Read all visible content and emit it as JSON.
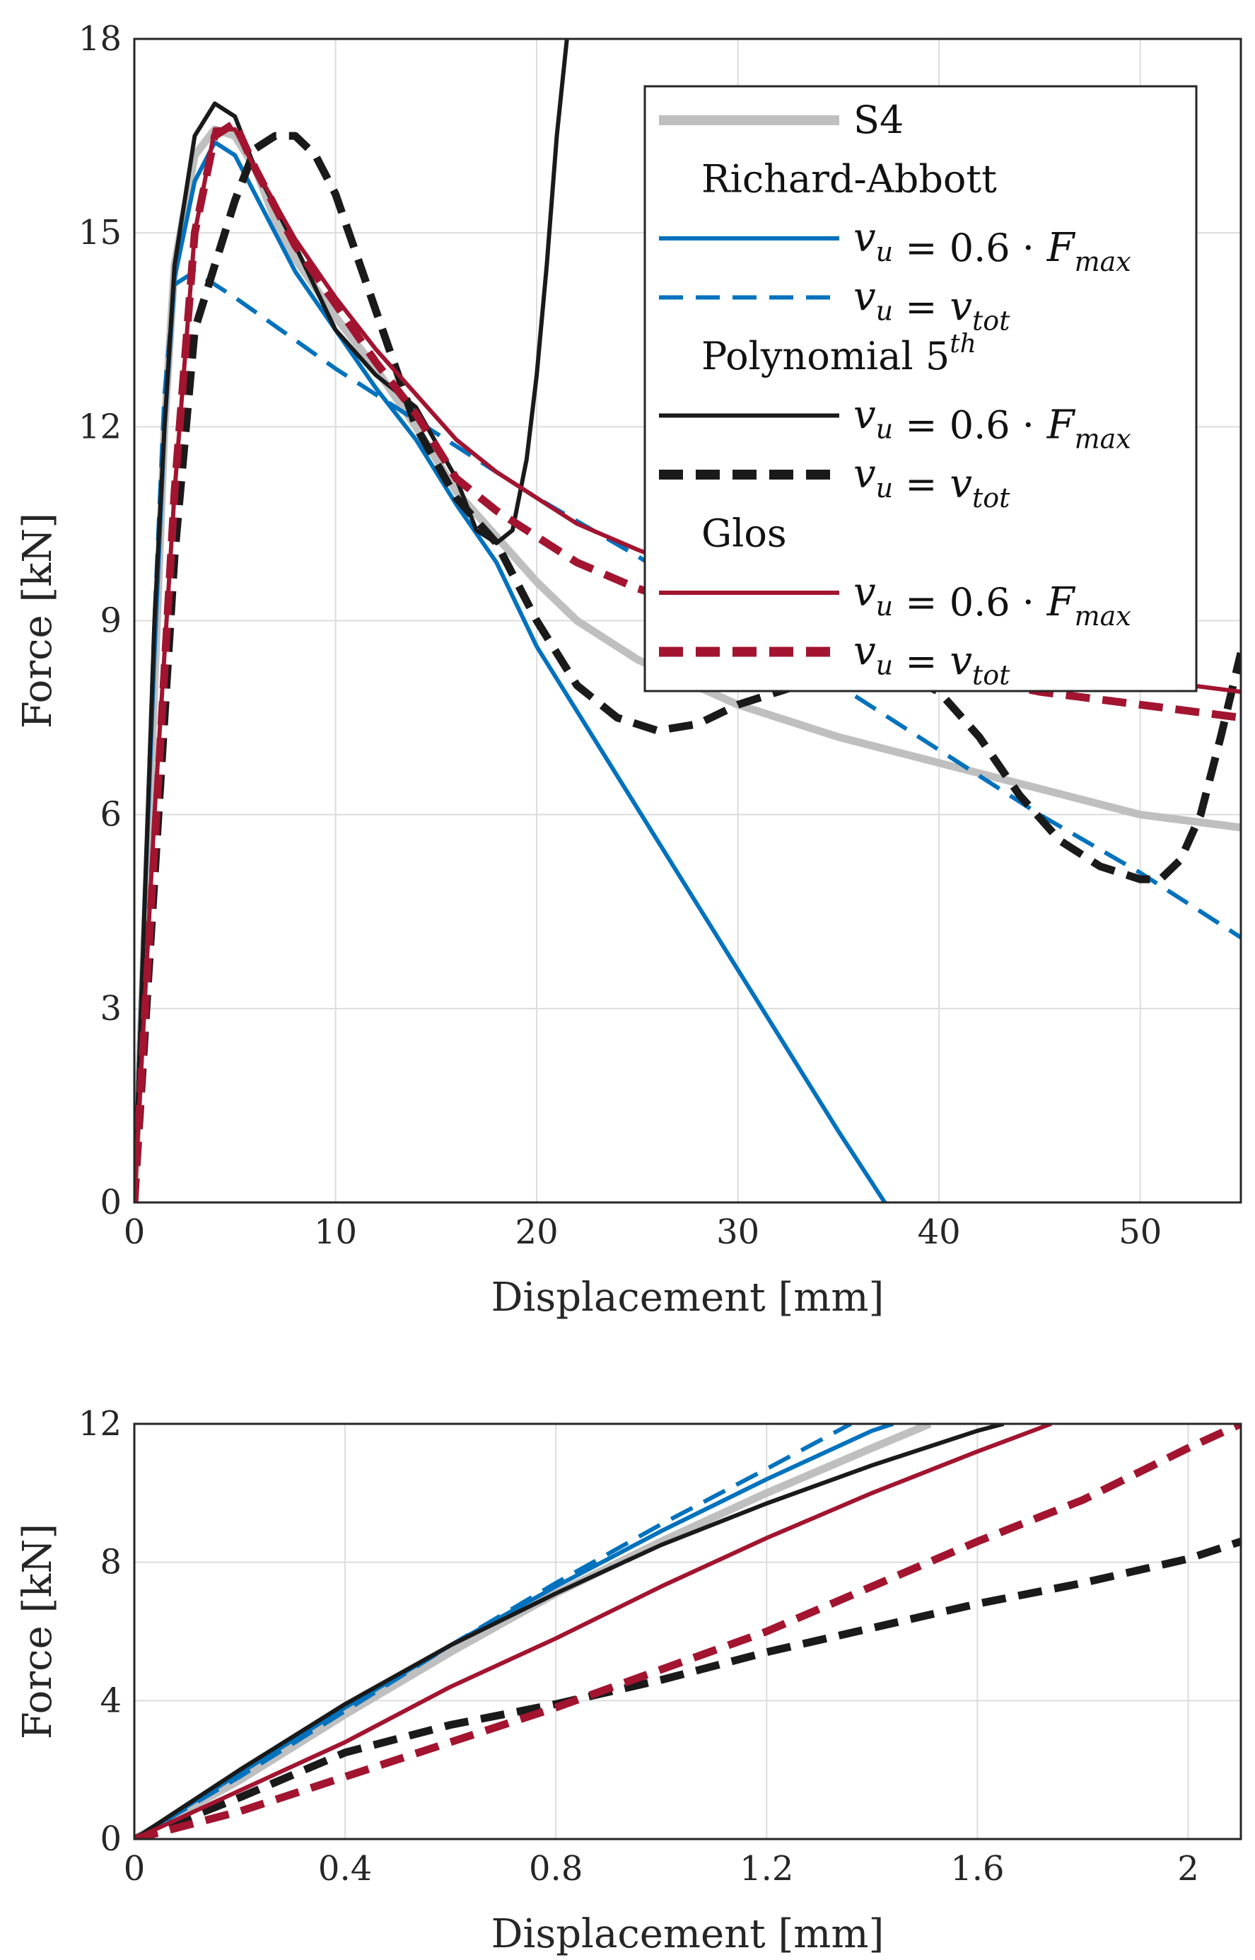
{
  "chart_data": [
    {
      "type": "line",
      "xlabel": "Displacement [mm]",
      "ylabel": "Force [kN]",
      "xlim": [
        0,
        55
      ],
      "ylim": [
        0,
        18
      ],
      "xticks": [
        0,
        10,
        20,
        30,
        40,
        50
      ],
      "yticks": [
        0,
        3,
        6,
        9,
        12,
        15,
        18
      ],
      "grid": true,
      "legend_position": "top-right",
      "legend": [
        {
          "kind": "entry",
          "series": 0,
          "text": "S4"
        },
        {
          "kind": "heading",
          "text": "Richard-Abbott"
        },
        {
          "kind": "entry",
          "series": 1,
          "math": "v_u = 0.6 · F_max"
        },
        {
          "kind": "entry",
          "series": 2,
          "math": "v_u = v_tot"
        },
        {
          "kind": "heading",
          "text": "Polynomial 5",
          "sup": "th"
        },
        {
          "kind": "entry",
          "series": 3,
          "math": "v_u = 0.6 · F_max"
        },
        {
          "kind": "entry",
          "series": 4,
          "math": "v_u = v_tot"
        },
        {
          "kind": "heading",
          "text": "Glos"
        },
        {
          "kind": "entry",
          "series": 5,
          "math": "v_u = 0.6 · F_max"
        },
        {
          "kind": "entry",
          "series": 6,
          "math": "v_u = v_tot"
        }
      ],
      "series": [
        {
          "name": "S4",
          "color": "#bfbfbf",
          "style": "solid",
          "width": "thick",
          "points": [
            [
              0,
              0
            ],
            [
              0.5,
              4
            ],
            [
              1,
              8
            ],
            [
              1.5,
              12
            ],
            [
              2,
              14.5
            ],
            [
              3,
              16.2
            ],
            [
              4,
              16.6
            ],
            [
              5,
              16.5
            ],
            [
              6,
              16
            ],
            [
              7,
              15.2
            ],
            [
              8,
              14.6
            ],
            [
              10,
              13.7
            ],
            [
              12,
              12.9
            ],
            [
              14,
              12
            ],
            [
              16,
              11
            ],
            [
              18,
              10.3
            ],
            [
              20,
              9.6
            ],
            [
              22,
              9
            ],
            [
              25,
              8.4
            ],
            [
              30,
              7.7
            ],
            [
              35,
              7.2
            ],
            [
              40,
              6.8
            ],
            [
              45,
              6.4
            ],
            [
              50,
              6
            ],
            [
              55,
              5.8
            ]
          ]
        },
        {
          "name": "Richard-Abbott v_u = 0.6 · F_max",
          "color": "#0072bd",
          "style": "solid",
          "width": "normal",
          "points": [
            [
              0,
              0
            ],
            [
              0.5,
              4.5
            ],
            [
              1,
              8.5
            ],
            [
              1.5,
              12
            ],
            [
              2,
              14.3
            ],
            [
              3,
              15.8
            ],
            [
              4,
              16.4
            ],
            [
              5,
              16.2
            ],
            [
              6,
              15.6
            ],
            [
              7,
              15
            ],
            [
              8,
              14.4
            ],
            [
              10,
              13.5
            ],
            [
              12,
              12.6
            ],
            [
              14,
              11.8
            ],
            [
              16,
              10.8
            ],
            [
              18,
              9.9
            ],
            [
              20,
              8.6
            ],
            [
              25,
              6.1
            ],
            [
              30,
              3.6
            ],
            [
              35,
              1.1
            ],
            [
              37.3,
              0
            ]
          ]
        },
        {
          "name": "Richard-Abbott v_u = v_tot",
          "color": "#0072bd",
          "style": "dashed",
          "width": "normal",
          "points": [
            [
              0,
              0
            ],
            [
              0.5,
              4.5
            ],
            [
              1,
              9
            ],
            [
              1.5,
              12.5
            ],
            [
              2,
              14.2
            ],
            [
              3,
              14.4
            ],
            [
              5,
              14
            ],
            [
              10,
              12.9
            ],
            [
              15,
              11.9
            ],
            [
              20,
              10.9
            ],
            [
              25,
              10
            ],
            [
              30,
              9
            ],
            [
              35,
              8
            ],
            [
              40,
              7
            ],
            [
              45,
              6
            ],
            [
              50,
              5.1
            ],
            [
              55,
              4.1
            ]
          ]
        },
        {
          "name": "Polynomial 5th v_u = 0.6 · F_max",
          "color": "#1a1a1a",
          "style": "solid",
          "width": "normal",
          "points": [
            [
              0,
              0
            ],
            [
              0.5,
              4.5
            ],
            [
              1,
              9
            ],
            [
              1.5,
              12
            ],
            [
              2,
              14.5
            ],
            [
              3,
              16.5
            ],
            [
              4,
              17
            ],
            [
              5,
              16.8
            ],
            [
              6,
              16
            ],
            [
              8,
              14.8
            ],
            [
              10,
              13.5
            ],
            [
              12,
              12.8
            ],
            [
              14,
              12.3
            ],
            [
              16,
              11.2
            ],
            [
              17,
              10.4
            ],
            [
              18,
              10.2
            ],
            [
              18.8,
              10.4
            ],
            [
              19.5,
              11.5
            ],
            [
              20,
              12.8
            ],
            [
              20.5,
              14.5
            ],
            [
              21,
              16.5
            ],
            [
              21.5,
              18
            ]
          ]
        },
        {
          "name": "Polynomial 5th v_u = v_tot",
          "color": "#1a1a1a",
          "style": "dashed",
          "width": "thick",
          "points": [
            [
              0,
              0
            ],
            [
              1,
              5
            ],
            [
              2,
              10
            ],
            [
              3,
              13.5
            ],
            [
              4,
              14.5
            ],
            [
              5,
              15.5
            ],
            [
              6,
              16.3
            ],
            [
              7,
              16.5
            ],
            [
              8,
              16.5
            ],
            [
              9,
              16.2
            ],
            [
              10,
              15.6
            ],
            [
              12,
              13.8
            ],
            [
              14,
              12
            ],
            [
              16,
              10.9
            ],
            [
              18,
              10.2
            ],
            [
              20,
              9
            ],
            [
              22,
              8
            ],
            [
              24,
              7.5
            ],
            [
              26,
              7.3
            ],
            [
              28,
              7.4
            ],
            [
              30,
              7.7
            ],
            [
              32,
              7.9
            ],
            [
              34,
              8.1
            ],
            [
              36,
              8.2
            ],
            [
              38,
              8.2
            ],
            [
              40,
              7.9
            ],
            [
              42,
              7.2
            ],
            [
              44,
              6.3
            ],
            [
              46,
              5.6
            ],
            [
              48,
              5.2
            ],
            [
              50,
              5
            ],
            [
              51,
              5
            ],
            [
              52,
              5.3
            ],
            [
              53,
              6
            ],
            [
              54,
              7.2
            ],
            [
              55,
              8.5
            ]
          ]
        },
        {
          "name": "Glos v_u = 0.6 · F_max",
          "color": "#a2142f",
          "style": "solid",
          "width": "normal",
          "points": [
            [
              0,
              0
            ],
            [
              1,
              6
            ],
            [
              2,
              11
            ],
            [
              3,
              15
            ],
            [
              4,
              16.6
            ],
            [
              5,
              16.6
            ],
            [
              6,
              16
            ],
            [
              8,
              14.9
            ],
            [
              10,
              14
            ],
            [
              12,
              13.2
            ],
            [
              14,
              12.5
            ],
            [
              16,
              11.8
            ],
            [
              18,
              11.3
            ],
            [
              20,
              10.9
            ],
            [
              22,
              10.5
            ],
            [
              25,
              10.1
            ],
            [
              30,
              9.5
            ],
            [
              35,
              9
            ],
            [
              40,
              8.6
            ],
            [
              45,
              8.3
            ],
            [
              50,
              8.1
            ],
            [
              55,
              7.9
            ]
          ]
        },
        {
          "name": "Glos v_u = v_tot",
          "color": "#a2142f",
          "style": "dashed",
          "width": "thick",
          "points": [
            [
              0,
              0
            ],
            [
              1,
              5.5
            ],
            [
              2,
              11
            ],
            [
              3,
              15
            ],
            [
              4,
              16.5
            ],
            [
              5,
              16.7
            ],
            [
              6,
              16
            ],
            [
              8,
              14.8
            ],
            [
              10,
              13.9
            ],
            [
              12,
              13
            ],
            [
              14,
              12.2
            ],
            [
              16,
              11.2
            ],
            [
              18,
              10.7
            ],
            [
              20,
              10.3
            ],
            [
              22,
              9.9
            ],
            [
              25,
              9.5
            ],
            [
              30,
              9
            ],
            [
              35,
              8.6
            ],
            [
              40,
              8.2
            ],
            [
              45,
              7.9
            ],
            [
              50,
              7.7
            ],
            [
              55,
              7.5
            ]
          ]
        }
      ]
    },
    {
      "type": "line",
      "xlabel": "Displacement [mm]",
      "ylabel": "Force [kN]",
      "xlim": [
        0,
        2.1
      ],
      "ylim": [
        0,
        12
      ],
      "xticks": [
        0,
        0.4,
        0.8,
        1.2,
        1.6,
        2
      ],
      "yticks": [
        0,
        4,
        8,
        12
      ],
      "grid": true,
      "series": [
        {
          "name": "S4",
          "color": "#bfbfbf",
          "style": "solid",
          "width": "thick",
          "points": [
            [
              0,
              0
            ],
            [
              0.2,
              1.7
            ],
            [
              0.4,
              3.6
            ],
            [
              0.6,
              5.4
            ],
            [
              0.8,
              7.1
            ],
            [
              1,
              8.6
            ],
            [
              1.2,
              10
            ],
            [
              1.4,
              11.3
            ],
            [
              1.51,
              12
            ]
          ]
        },
        {
          "name": "Richard-Abbott v_u = 0.6 · F_max",
          "color": "#0072bd",
          "style": "solid",
          "width": "normal",
          "points": [
            [
              0,
              0
            ],
            [
              0.2,
              1.9
            ],
            [
              0.4,
              3.8
            ],
            [
              0.6,
              5.6
            ],
            [
              0.8,
              7.3
            ],
            [
              1,
              8.9
            ],
            [
              1.2,
              10.4
            ],
            [
              1.4,
              11.8
            ],
            [
              1.44,
              12
            ]
          ]
        },
        {
          "name": "Richard-Abbott v_u = v_tot",
          "color": "#0072bd",
          "style": "dashed",
          "width": "normal",
          "points": [
            [
              0,
              0
            ],
            [
              0.2,
              1.8
            ],
            [
              0.4,
              3.7
            ],
            [
              0.6,
              5.6
            ],
            [
              0.8,
              7.4
            ],
            [
              1,
              9.1
            ],
            [
              1.2,
              10.7
            ],
            [
              1.36,
              12
            ]
          ]
        },
        {
          "name": "Polynomial 5th v_u = 0.6 · F_max",
          "color": "#1a1a1a",
          "style": "solid",
          "width": "normal",
          "points": [
            [
              0,
              0
            ],
            [
              0.2,
              2
            ],
            [
              0.4,
              3.9
            ],
            [
              0.6,
              5.6
            ],
            [
              0.8,
              7.1
            ],
            [
              1,
              8.5
            ],
            [
              1.2,
              9.7
            ],
            [
              1.4,
              10.8
            ],
            [
              1.6,
              11.8
            ],
            [
              1.65,
              12
            ]
          ]
        },
        {
          "name": "Polynomial 5th v_u = v_tot",
          "color": "#1a1a1a",
          "style": "dashed",
          "width": "thick",
          "points": [
            [
              0,
              0
            ],
            [
              0.2,
              1.2
            ],
            [
              0.4,
              2.5
            ],
            [
              0.6,
              3.3
            ],
            [
              0.8,
              3.9
            ],
            [
              1,
              4.6
            ],
            [
              1.2,
              5.4
            ],
            [
              1.4,
              6.1
            ],
            [
              1.6,
              6.8
            ],
            [
              1.8,
              7.4
            ],
            [
              2,
              8.1
            ],
            [
              2.1,
              8.6
            ]
          ]
        },
        {
          "name": "Glos v_u = 0.6 · F_max",
          "color": "#a2142f",
          "style": "solid",
          "width": "normal",
          "points": [
            [
              0,
              0
            ],
            [
              0.2,
              1.4
            ],
            [
              0.4,
              2.8
            ],
            [
              0.6,
              4.4
            ],
            [
              0.8,
              5.8
            ],
            [
              1,
              7.3
            ],
            [
              1.2,
              8.7
            ],
            [
              1.4,
              10
            ],
            [
              1.6,
              11.2
            ],
            [
              1.74,
              12
            ]
          ]
        },
        {
          "name": "Glos v_u = v_tot",
          "color": "#a2142f",
          "style": "dashed",
          "width": "thick",
          "points": [
            [
              0,
              0
            ],
            [
              0.2,
              0.8
            ],
            [
              0.4,
              1.8
            ],
            [
              0.6,
              2.8
            ],
            [
              0.8,
              3.8
            ],
            [
              1,
              4.9
            ],
            [
              1.2,
              6
            ],
            [
              1.4,
              7.3
            ],
            [
              1.6,
              8.6
            ],
            [
              1.8,
              9.8
            ],
            [
              2,
              11.3
            ],
            [
              2.1,
              12
            ]
          ]
        }
      ]
    }
  ]
}
